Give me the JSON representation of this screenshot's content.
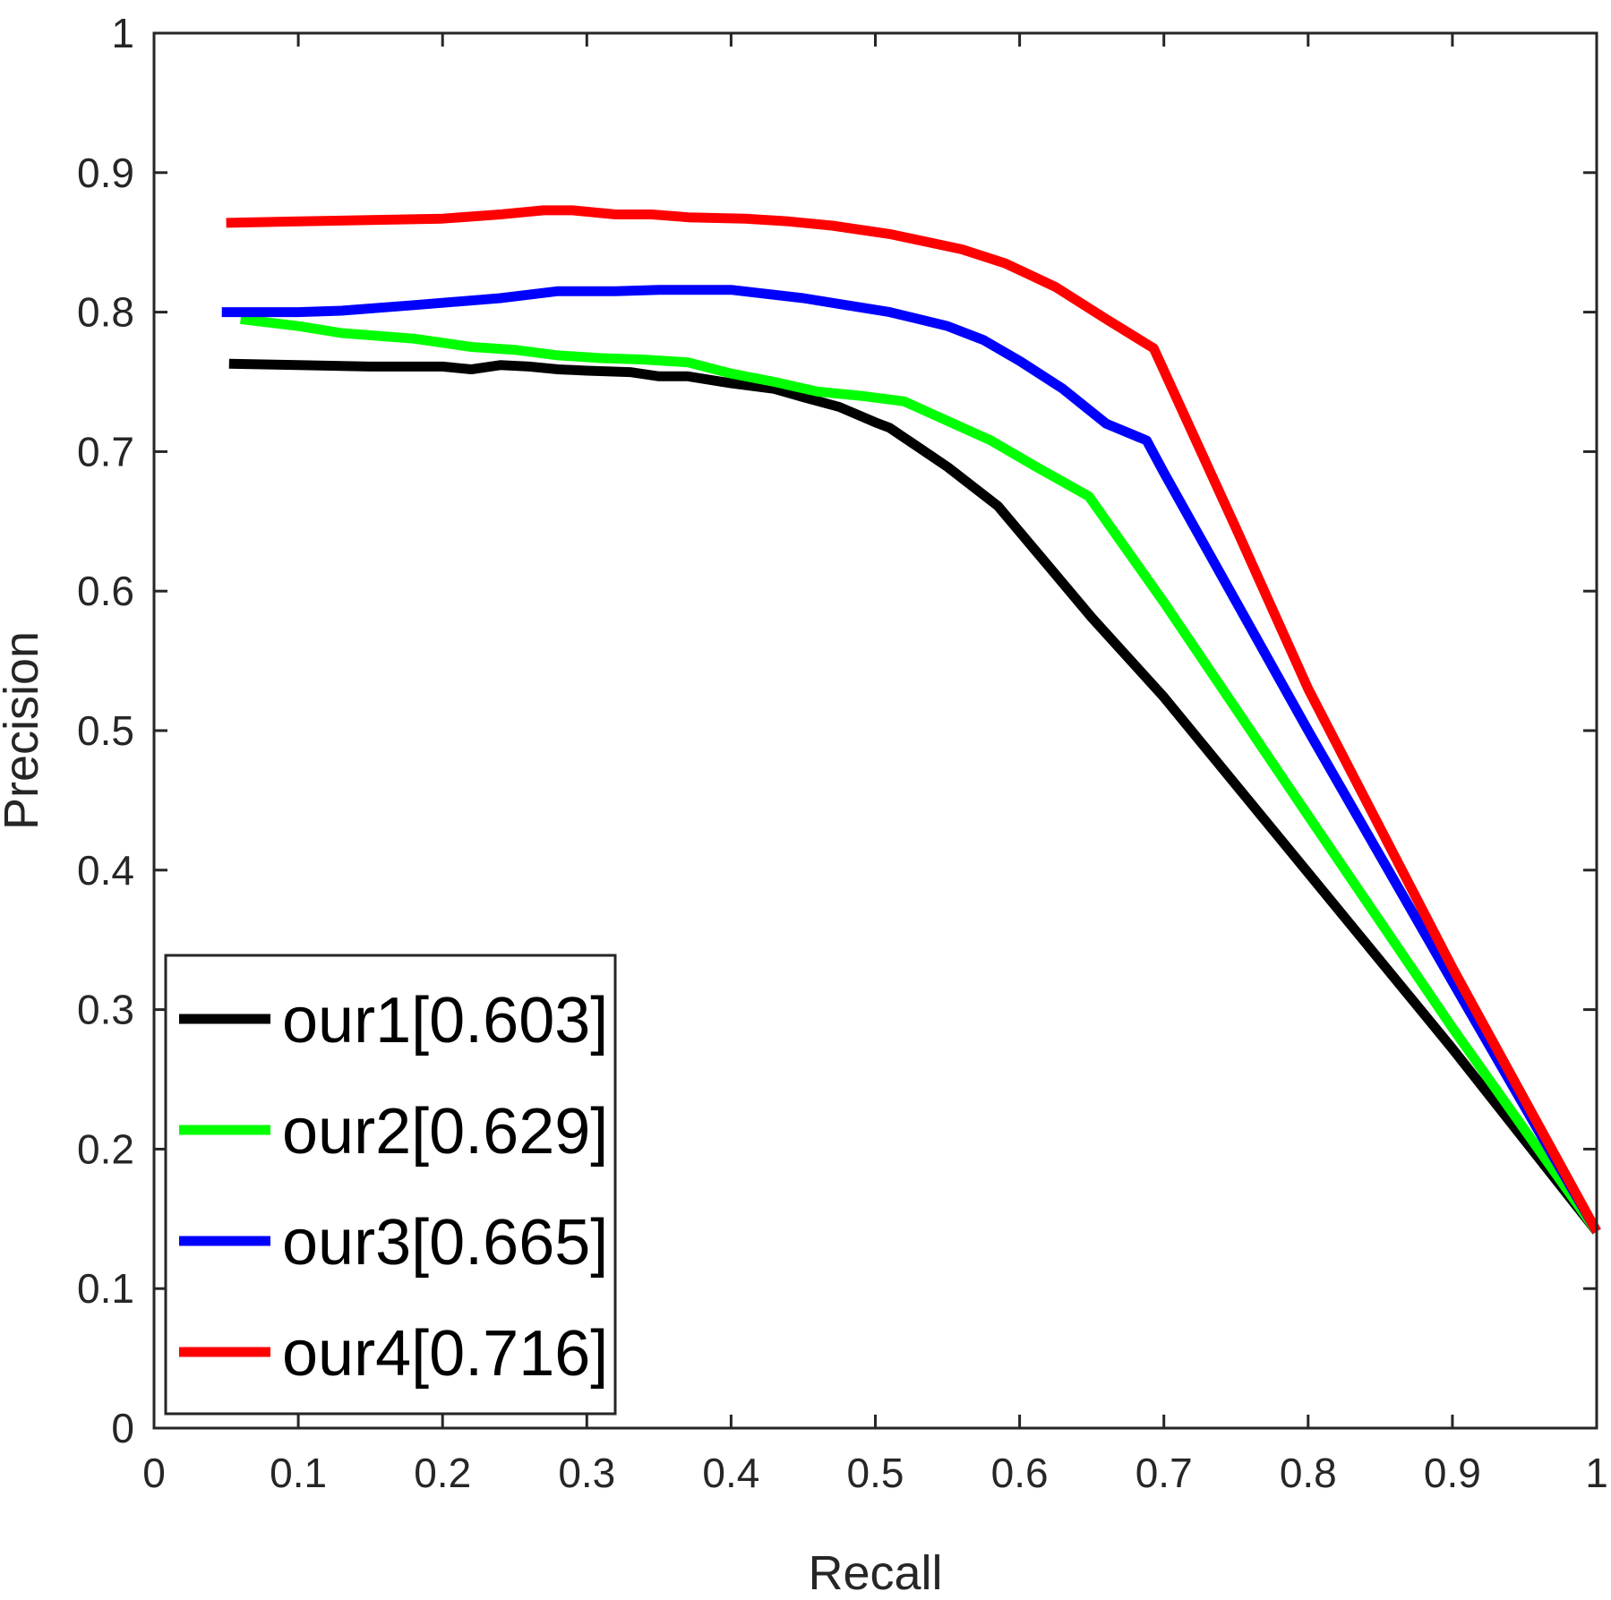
{
  "chart_data": {
    "type": "line",
    "title": "",
    "xlabel": "Recall",
    "ylabel": "Precision",
    "xlim": [
      0,
      1
    ],
    "ylim": [
      0,
      1
    ],
    "xticks": [
      0,
      0.1,
      0.2,
      0.3,
      0.4,
      0.5,
      0.6,
      0.7,
      0.8,
      0.9,
      1
    ],
    "xtick_labels": [
      "0",
      "0.1",
      "0.2",
      "0.3",
      "0.4",
      "0.5",
      "0.6",
      "0.7",
      "0.8",
      "0.9",
      "1"
    ],
    "yticks": [
      0,
      0.1,
      0.2,
      0.3,
      0.4,
      0.5,
      0.6,
      0.7,
      0.8,
      0.9,
      1
    ],
    "ytick_labels": [
      "0",
      "0.1",
      "0.2",
      "0.3",
      "0.4",
      "0.5",
      "0.6",
      "0.7",
      "0.8",
      "0.9",
      "1"
    ],
    "grid": false,
    "legend_position": "bottom-left",
    "series": [
      {
        "name": "our1[0.603]",
        "color": "#000000",
        "points": [
          [
            0.052,
            0.763
          ],
          [
            0.1,
            0.762
          ],
          [
            0.15,
            0.761
          ],
          [
            0.2,
            0.761
          ],
          [
            0.22,
            0.759
          ],
          [
            0.24,
            0.762
          ],
          [
            0.26,
            0.761
          ],
          [
            0.28,
            0.759
          ],
          [
            0.3,
            0.758
          ],
          [
            0.33,
            0.757
          ],
          [
            0.35,
            0.754
          ],
          [
            0.37,
            0.754
          ],
          [
            0.4,
            0.749
          ],
          [
            0.43,
            0.745
          ],
          [
            0.45,
            0.739
          ],
          [
            0.475,
            0.732
          ],
          [
            0.5,
            0.721
          ],
          [
            0.51,
            0.717
          ],
          [
            0.55,
            0.689
          ],
          [
            0.585,
            0.661
          ],
          [
            0.62,
            0.618
          ],
          [
            0.65,
            0.581
          ],
          [
            0.7,
            0.524
          ],
          [
            0.8,
            0.398
          ],
          [
            0.9,
            0.272
          ],
          [
            1.0,
            0.141
          ]
        ]
      },
      {
        "name": "our2[0.629]",
        "color": "#00ff00",
        "points": [
          [
            0.06,
            0.795
          ],
          [
            0.1,
            0.79
          ],
          [
            0.13,
            0.785
          ],
          [
            0.18,
            0.781
          ],
          [
            0.22,
            0.775
          ],
          [
            0.25,
            0.773
          ],
          [
            0.28,
            0.769
          ],
          [
            0.31,
            0.767
          ],
          [
            0.34,
            0.766
          ],
          [
            0.37,
            0.764
          ],
          [
            0.4,
            0.756
          ],
          [
            0.43,
            0.75
          ],
          [
            0.46,
            0.743
          ],
          [
            0.49,
            0.74
          ],
          [
            0.52,
            0.736
          ],
          [
            0.55,
            0.722
          ],
          [
            0.58,
            0.708
          ],
          [
            0.61,
            0.69
          ],
          [
            0.648,
            0.668
          ],
          [
            0.7,
            0.592
          ],
          [
            0.8,
            0.439
          ],
          [
            0.9,
            0.287
          ],
          [
            1.0,
            0.141
          ]
        ]
      },
      {
        "name": "our3[0.665]",
        "color": "#0000ff",
        "points": [
          [
            0.047,
            0.8
          ],
          [
            0.1,
            0.8
          ],
          [
            0.13,
            0.801
          ],
          [
            0.18,
            0.805
          ],
          [
            0.24,
            0.81
          ],
          [
            0.28,
            0.815
          ],
          [
            0.32,
            0.815
          ],
          [
            0.35,
            0.816
          ],
          [
            0.4,
            0.816
          ],
          [
            0.45,
            0.81
          ],
          [
            0.48,
            0.805
          ],
          [
            0.51,
            0.8
          ],
          [
            0.55,
            0.79
          ],
          [
            0.575,
            0.78
          ],
          [
            0.6,
            0.765
          ],
          [
            0.63,
            0.745
          ],
          [
            0.66,
            0.72
          ],
          [
            0.688,
            0.708
          ],
          [
            0.7,
            0.685
          ],
          [
            0.8,
            0.5
          ],
          [
            0.9,
            0.32
          ],
          [
            1.0,
            0.141
          ]
        ]
      },
      {
        "name": "our4[0.716]",
        "color": "#ff0000",
        "points": [
          [
            0.05,
            0.864
          ],
          [
            0.1,
            0.865
          ],
          [
            0.15,
            0.866
          ],
          [
            0.2,
            0.867
          ],
          [
            0.24,
            0.87
          ],
          [
            0.27,
            0.873
          ],
          [
            0.29,
            0.873
          ],
          [
            0.32,
            0.87
          ],
          [
            0.345,
            0.87
          ],
          [
            0.37,
            0.868
          ],
          [
            0.41,
            0.867
          ],
          [
            0.44,
            0.865
          ],
          [
            0.47,
            0.862
          ],
          [
            0.51,
            0.856
          ],
          [
            0.56,
            0.845
          ],
          [
            0.59,
            0.835
          ],
          [
            0.625,
            0.818
          ],
          [
            0.66,
            0.795
          ],
          [
            0.693,
            0.774
          ],
          [
            0.75,
            0.645
          ],
          [
            0.8,
            0.53
          ],
          [
            0.9,
            0.33
          ],
          [
            1.0,
            0.141
          ]
        ]
      }
    ]
  }
}
